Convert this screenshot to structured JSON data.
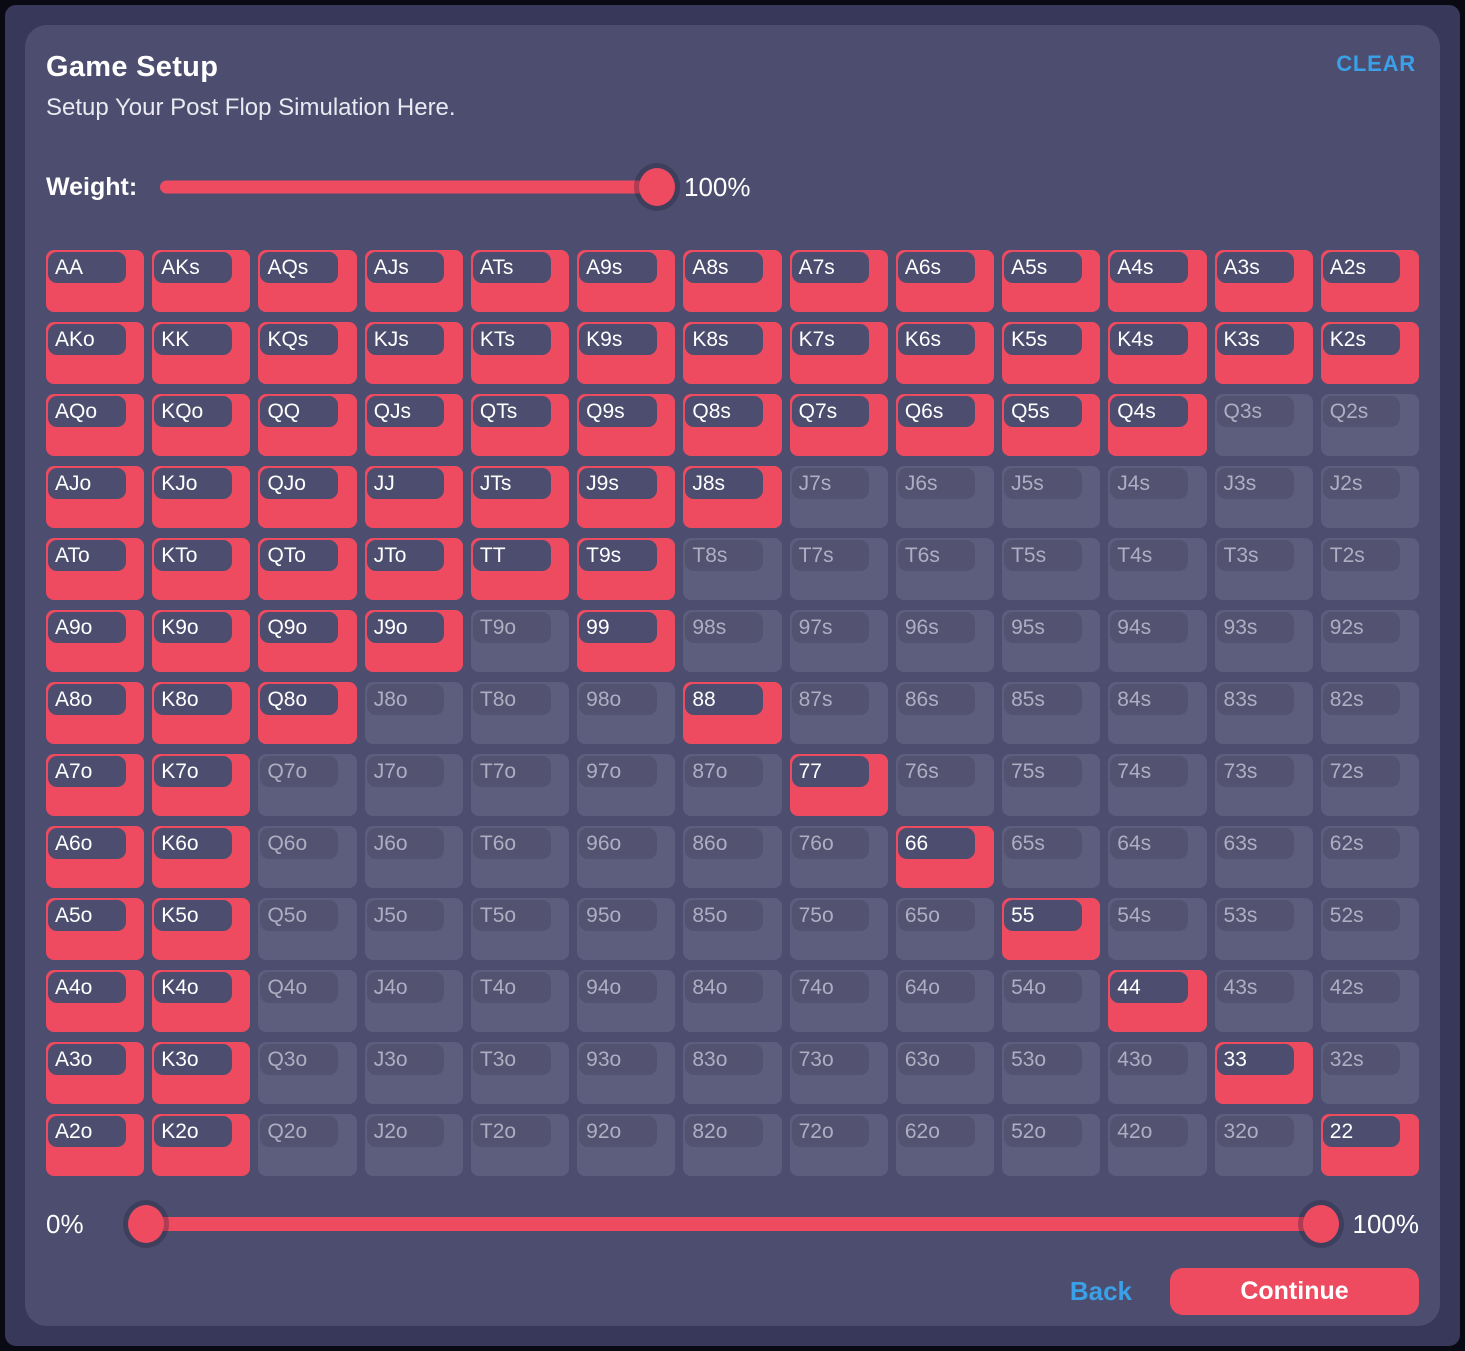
{
  "header": {
    "title": "Game Setup",
    "subtitle": "Setup Your Post Flop Simulation Here.",
    "clear_label": "CLEAR"
  },
  "weight": {
    "label": "Weight:",
    "value": "100%",
    "percent": 100
  },
  "grid": {
    "labels": [
      [
        "AA",
        "AKs",
        "AQs",
        "AJs",
        "ATs",
        "A9s",
        "A8s",
        "A7s",
        "A6s",
        "A5s",
        "A4s",
        "A3s",
        "A2s"
      ],
      [
        "AKo",
        "KK",
        "KQs",
        "KJs",
        "KTs",
        "K9s",
        "K8s",
        "K7s",
        "K6s",
        "K5s",
        "K4s",
        "K3s",
        "K2s"
      ],
      [
        "AQo",
        "KQo",
        "QQ",
        "QJs",
        "QTs",
        "Q9s",
        "Q8s",
        "Q7s",
        "Q6s",
        "Q5s",
        "Q4s",
        "Q3s",
        "Q2s"
      ],
      [
        "AJo",
        "KJo",
        "QJo",
        "JJ",
        "JTs",
        "J9s",
        "J8s",
        "J7s",
        "J6s",
        "J5s",
        "J4s",
        "J3s",
        "J2s"
      ],
      [
        "ATo",
        "KTo",
        "QTo",
        "JTo",
        "TT",
        "T9s",
        "T8s",
        "T7s",
        "T6s",
        "T5s",
        "T4s",
        "T3s",
        "T2s"
      ],
      [
        "A9o",
        "K9o",
        "Q9o",
        "J9o",
        "T9o",
        "99",
        "98s",
        "97s",
        "96s",
        "95s",
        "94s",
        "93s",
        "92s"
      ],
      [
        "A8o",
        "K8o",
        "Q8o",
        "J8o",
        "T8o",
        "98o",
        "88",
        "87s",
        "86s",
        "85s",
        "84s",
        "83s",
        "82s"
      ],
      [
        "A7o",
        "K7o",
        "Q7o",
        "J7o",
        "T7o",
        "97o",
        "87o",
        "77",
        "76s",
        "75s",
        "74s",
        "73s",
        "72s"
      ],
      [
        "A6o",
        "K6o",
        "Q6o",
        "J6o",
        "T6o",
        "96o",
        "86o",
        "76o",
        "66",
        "65s",
        "64s",
        "63s",
        "62s"
      ],
      [
        "A5o",
        "K5o",
        "Q5o",
        "J5o",
        "T5o",
        "95o",
        "85o",
        "75o",
        "65o",
        "55",
        "54s",
        "53s",
        "52s"
      ],
      [
        "A4o",
        "K4o",
        "Q4o",
        "J4o",
        "T4o",
        "94o",
        "84o",
        "74o",
        "64o",
        "54o",
        "44",
        "43s",
        "42s"
      ],
      [
        "A3o",
        "K3o",
        "Q3o",
        "J3o",
        "T3o",
        "93o",
        "83o",
        "73o",
        "63o",
        "53o",
        "43o",
        "33",
        "32s"
      ],
      [
        "A2o",
        "K2o",
        "Q2o",
        "J2o",
        "T2o",
        "92o",
        "82o",
        "72o",
        "62o",
        "52o",
        "42o",
        "32o",
        "22"
      ]
    ],
    "selected": [
      [
        1,
        1,
        1,
        1,
        1,
        1,
        1,
        1,
        1,
        1,
        1,
        1,
        1
      ],
      [
        1,
        1,
        1,
        1,
        1,
        1,
        1,
        1,
        1,
        1,
        1,
        1,
        1
      ],
      [
        1,
        1,
        1,
        1,
        1,
        1,
        1,
        1,
        1,
        1,
        1,
        0,
        0
      ],
      [
        1,
        1,
        1,
        1,
        1,
        1,
        1,
        0,
        0,
        0,
        0,
        0,
        0
      ],
      [
        1,
        1,
        1,
        1,
        1,
        1,
        0,
        0,
        0,
        0,
        0,
        0,
        0
      ],
      [
        1,
        1,
        1,
        1,
        0,
        1,
        0,
        0,
        0,
        0,
        0,
        0,
        0
      ],
      [
        1,
        1,
        1,
        0,
        0,
        0,
        1,
        0,
        0,
        0,
        0,
        0,
        0
      ],
      [
        1,
        1,
        0,
        0,
        0,
        0,
        0,
        1,
        0,
        0,
        0,
        0,
        0
      ],
      [
        1,
        1,
        0,
        0,
        0,
        0,
        0,
        0,
        1,
        0,
        0,
        0,
        0
      ],
      [
        1,
        1,
        0,
        0,
        0,
        0,
        0,
        0,
        0,
        1,
        0,
        0,
        0
      ],
      [
        1,
        1,
        0,
        0,
        0,
        0,
        0,
        0,
        0,
        0,
        1,
        0,
        0
      ],
      [
        1,
        1,
        0,
        0,
        0,
        0,
        0,
        0,
        0,
        0,
        0,
        1,
        0
      ],
      [
        1,
        1,
        0,
        0,
        0,
        0,
        0,
        0,
        0,
        0,
        0,
        0,
        1
      ]
    ]
  },
  "range_slider": {
    "min_label": "0%",
    "max_label": "100%",
    "low_percent": 0,
    "high_percent": 100
  },
  "footer": {
    "back_label": "Back",
    "continue_label": "Continue"
  },
  "colors": {
    "accent_red": "#ee4a60",
    "accent_blue": "#3aa1e8",
    "panel": "#4d4d6f",
    "background": "#38385a",
    "cell_unselected": "#5d5d7e",
    "chip_unselected": "#535271",
    "chip_selected": "#4d4d6f",
    "text_muted": "#aeaec2"
  }
}
